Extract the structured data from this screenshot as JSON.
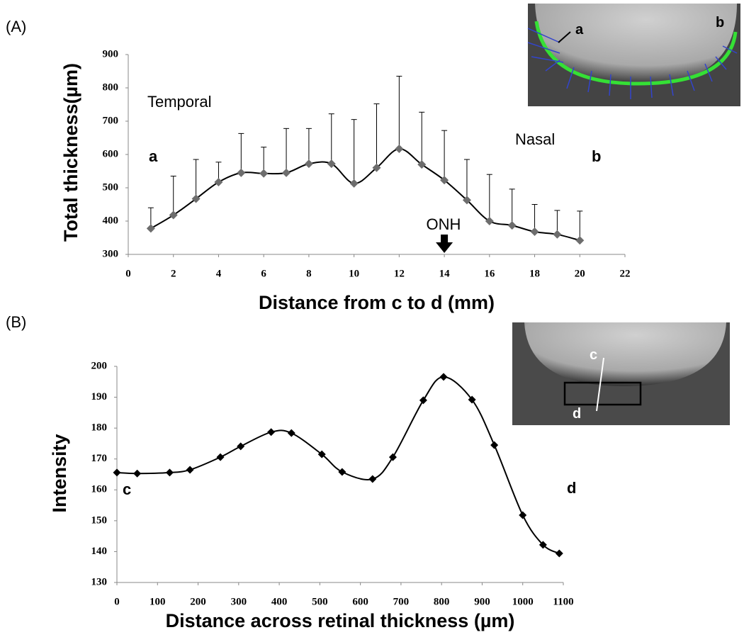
{
  "panel_labels": [
    "(A)",
    "(B)"
  ],
  "insets": [
    {
      "labels": [
        "a",
        "b"
      ]
    },
    {
      "labels": [
        "c",
        "d"
      ]
    }
  ],
  "chart_data": [
    {
      "type": "line",
      "x_label": "Distance from c to d (mm)",
      "y_label": "Total thickness(µm)",
      "annotations": [
        "Temporal",
        "Nasal",
        "a",
        "b",
        "ONH"
      ],
      "x": [
        1,
        2,
        3,
        4,
        5,
        6,
        7,
        8,
        9,
        10,
        11,
        12,
        13,
        14,
        15,
        16,
        17,
        18,
        19,
        20
      ],
      "series": [
        {
          "color": "#000000",
          "marker_color": "#6d6d6d",
          "values": [
            378,
            418,
            467,
            517,
            545,
            543,
            545,
            572,
            572,
            513,
            560,
            617,
            570,
            523,
            463,
            400,
            387,
            368,
            360,
            342
          ],
          "errors": [
            62,
            117,
            118,
            60,
            118,
            79,
            133,
            106,
            150,
            192,
            192,
            218,
            157,
            149,
            122,
            140,
            109,
            82,
            72,
            88
          ]
        }
      ],
      "xlim": [
        0,
        22
      ],
      "xticks": [
        0,
        2,
        4,
        6,
        8,
        10,
        12,
        14,
        16,
        18,
        20,
        22
      ],
      "ylim": [
        300,
        900
      ],
      "yticks": [
        300,
        400,
        500,
        600,
        700,
        800,
        900
      ],
      "grid": false
    },
    {
      "type": "line",
      "x_label": "Distance across retinal thickness (µm)",
      "y_label": "Intensity",
      "annotations": [
        "c",
        "d"
      ],
      "x": [
        0,
        50,
        130,
        180,
        255,
        305,
        380,
        430,
        505,
        555,
        630,
        680,
        755,
        805,
        875,
        930,
        1000,
        1050,
        1090
      ],
      "series": [
        {
          "color": "#000000",
          "marker_color": "#000000",
          "values": [
            165.6,
            165.3,
            165.6,
            166.5,
            170.6,
            174.1,
            178.7,
            178.4,
            171.5,
            165.8,
            163.5,
            170.6,
            189,
            196.6,
            189.2,
            174.5,
            151.8,
            142.2,
            139.4
          ]
        }
      ],
      "xlim": [
        0,
        1100
      ],
      "xticks": [
        0,
        100,
        200,
        300,
        400,
        500,
        600,
        700,
        800,
        900,
        1000,
        1100
      ],
      "ylim": [
        130,
        200
      ],
      "yticks": [
        130,
        140,
        150,
        160,
        170,
        180,
        190,
        200
      ],
      "grid": false
    }
  ]
}
